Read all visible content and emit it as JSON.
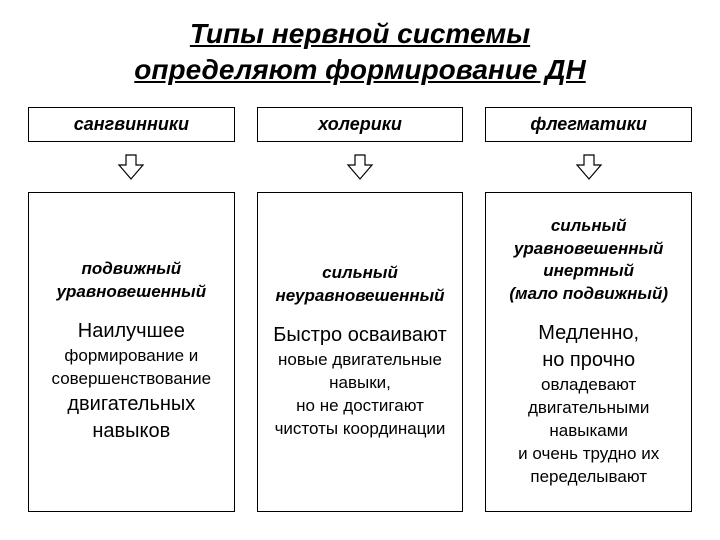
{
  "title_line1": "Типы нервной системы",
  "title_line2": "определяют формирование ДН",
  "colors": {
    "background": "#ffffff",
    "text": "#000000",
    "border": "#000000",
    "arrow_fill": "#ffffff",
    "arrow_stroke": "#000000"
  },
  "arrow": {
    "stroke_width": 1.2
  },
  "columns": [
    {
      "header": "сангвинники",
      "subtitle": "подвижный уравновешенный",
      "body_html": "<span class=\"strong-lg\">Наилучшее</span><br>формирование и совершенствование<br><span class=\"strong-lg\">двигательных навыков</span>"
    },
    {
      "header": "холерики",
      "subtitle": "сильный неуравновешенный",
      "body_html": "<span class=\"strong-lg\">Быстро осваивают</span><br>новые двигательные навыки,<br>но не достигают чистоты координации"
    },
    {
      "header": "флегматики",
      "subtitle": "сильный уравновешенный инертный<br>(мало подвижный)",
      "body_html": "<span class=\"strong-lg\">Медленно,<br>но прочно</span><br>овладевают двигательными навыками<br>и очень трудно их переделывают"
    }
  ]
}
